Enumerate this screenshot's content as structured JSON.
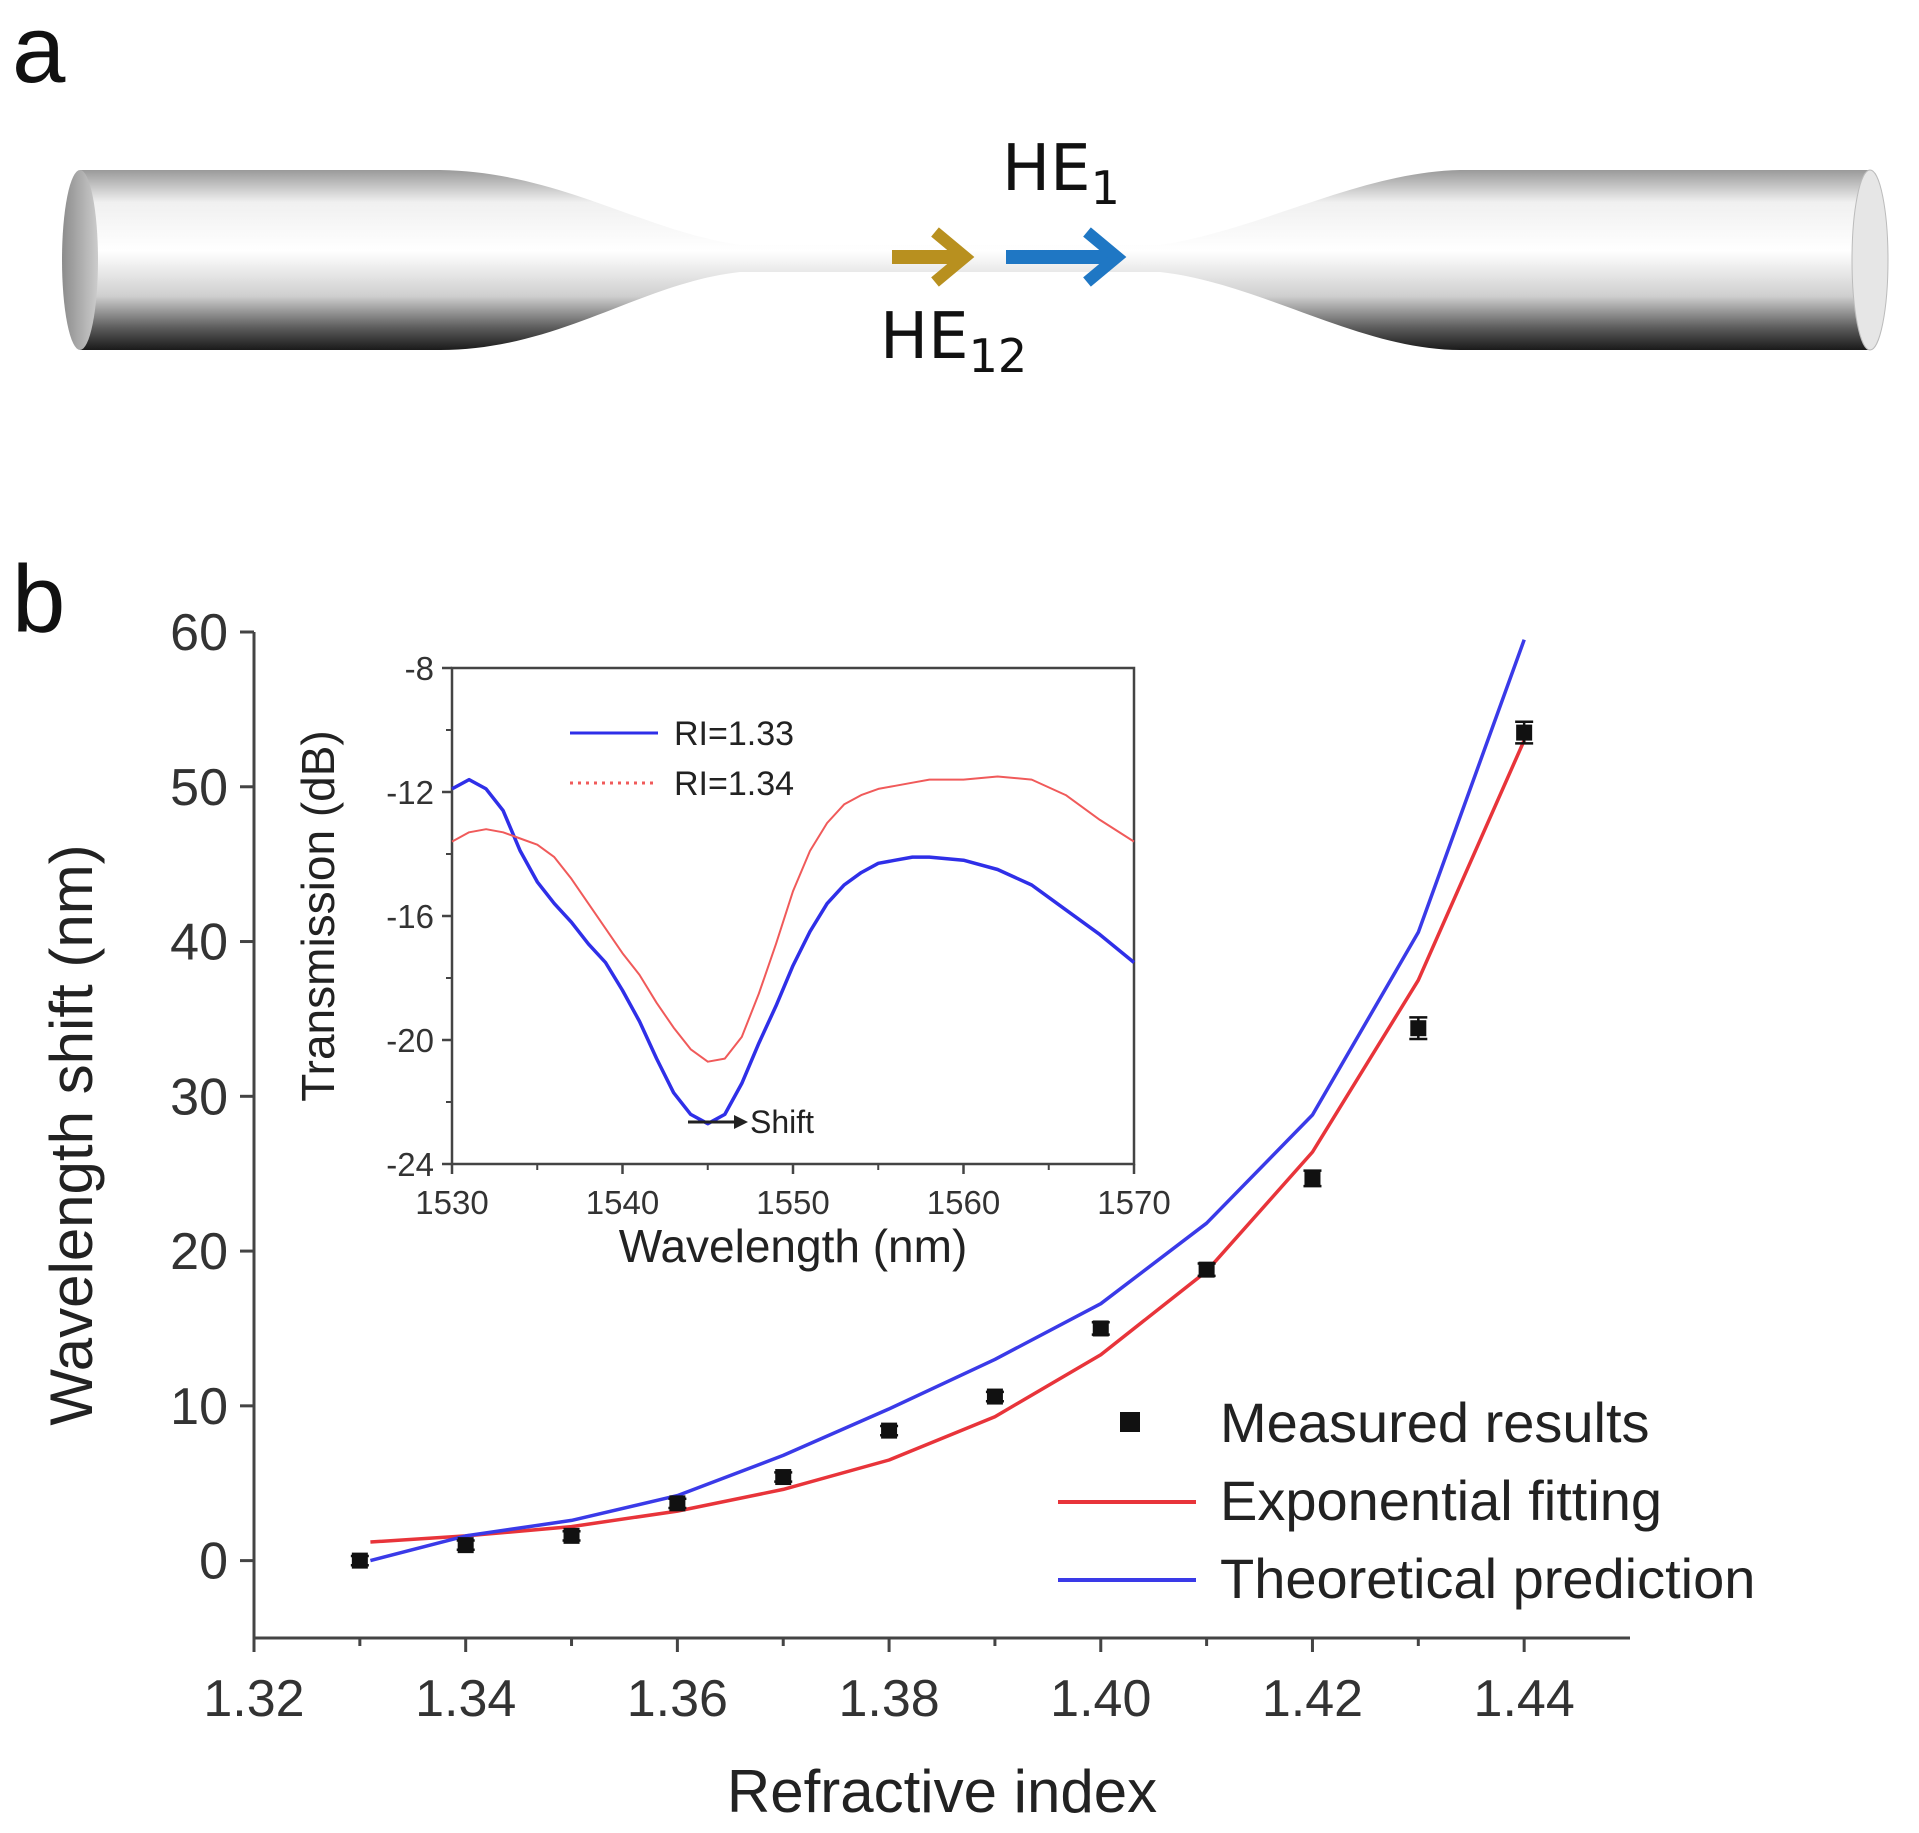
{
  "panel_a": {
    "letter": "a",
    "mode_labels": [
      {
        "base": "HE",
        "sub": "1"
      },
      {
        "base": "HE",
        "sub": "12"
      }
    ],
    "colors": {
      "he1_arrow": "#1f77c4",
      "he12_arrow": "#b8901f"
    }
  },
  "chart_data": [
    {
      "id": "main",
      "panel_letter": "b",
      "type": "scatter",
      "xlabel": "Refractive index",
      "ylabel": "Wavelength shift (nm)",
      "xlim": [
        1.32,
        1.45
      ],
      "ylim": [
        -5,
        60
      ],
      "xticks": [
        "1.32",
        "1.34",
        "1.36",
        "1.38",
        "1.40",
        "1.42",
        "1.44"
      ],
      "yticks": [
        "0",
        "10",
        "20",
        "30",
        "40",
        "50",
        "60"
      ],
      "legend_position": "bottom-right",
      "series": [
        {
          "name": "Measured results",
          "kind": "points_with_error",
          "color": "#111111",
          "x": [
            1.33,
            1.34,
            1.35,
            1.36,
            1.37,
            1.38,
            1.39,
            1.4,
            1.41,
            1.42,
            1.43,
            1.44
          ],
          "y": [
            0.0,
            1.0,
            1.6,
            3.7,
            5.4,
            8.4,
            10.6,
            15.0,
            18.8,
            24.7,
            34.4,
            53.5
          ],
          "err": [
            0.3,
            0.3,
            0.3,
            0.3,
            0.3,
            0.3,
            0.3,
            0.4,
            0.4,
            0.5,
            0.7,
            0.7
          ]
        },
        {
          "name": "Exponential fitting",
          "kind": "line",
          "color": "#e8343a",
          "x": [
            1.331,
            1.34,
            1.35,
            1.36,
            1.37,
            1.38,
            1.39,
            1.4,
            1.41,
            1.42,
            1.43,
            1.44
          ],
          "y": [
            1.2,
            1.6,
            2.2,
            3.2,
            4.6,
            6.5,
            9.3,
            13.3,
            18.7,
            26.4,
            37.5,
            53.0
          ]
        },
        {
          "name": "Theoretical prediction",
          "kind": "line",
          "color": "#3a3ae8",
          "x": [
            1.331,
            1.34,
            1.35,
            1.36,
            1.37,
            1.38,
            1.39,
            1.4,
            1.41,
            1.42,
            1.43,
            1.44
          ],
          "y": [
            0.0,
            1.6,
            2.6,
            4.2,
            6.8,
            9.8,
            13.0,
            16.6,
            21.8,
            28.8,
            40.6,
            59.5
          ]
        }
      ]
    },
    {
      "id": "inset",
      "type": "line",
      "xlabel": "Wavelength (nm)",
      "ylabel": "Transmission (dB)",
      "xlim": [
        1530,
        1570
      ],
      "ylim": [
        -24,
        -8
      ],
      "xticks": [
        "1530",
        "1540",
        "1550",
        "1560",
        "1570"
      ],
      "yticks": [
        "-8",
        "-12",
        "-16",
        "-20",
        "-24"
      ],
      "legend_position": "top-left",
      "annotation": "Shift",
      "series": [
        {
          "name": "RI=1.33",
          "color": "#2f2fe8",
          "style": "solid",
          "x": [
            1530,
            1531,
            1532,
            1533,
            1534,
            1535,
            1536,
            1537,
            1538,
            1539,
            1540,
            1541,
            1542,
            1543,
            1544,
            1545,
            1546,
            1547,
            1548,
            1549,
            1550,
            1551,
            1552,
            1553,
            1554,
            1555,
            1556,
            1557,
            1558,
            1560,
            1562,
            1564,
            1566,
            1568,
            1570
          ],
          "y": [
            -11.9,
            -11.6,
            -11.9,
            -12.6,
            -13.9,
            -14.9,
            -15.6,
            -16.2,
            -16.9,
            -17.5,
            -18.4,
            -19.4,
            -20.6,
            -21.7,
            -22.4,
            -22.7,
            -22.4,
            -21.4,
            -20.1,
            -18.9,
            -17.6,
            -16.5,
            -15.6,
            -15.0,
            -14.6,
            -14.3,
            -14.2,
            -14.1,
            -14.1,
            -14.2,
            -14.5,
            -15.0,
            -15.8,
            -16.6,
            -17.5
          ]
        },
        {
          "name": "RI=1.34",
          "color": "#f05a5a",
          "style": "dotted",
          "x": [
            1530,
            1531,
            1532,
            1533,
            1534,
            1535,
            1536,
            1537,
            1538,
            1539,
            1540,
            1541,
            1542,
            1543,
            1544,
            1545,
            1546,
            1547,
            1548,
            1549,
            1550,
            1551,
            1552,
            1553,
            1554,
            1555,
            1556,
            1557,
            1558,
            1560,
            1562,
            1564,
            1566,
            1568,
            1570
          ],
          "y": [
            -13.6,
            -13.3,
            -13.2,
            -13.3,
            -13.5,
            -13.7,
            -14.1,
            -14.8,
            -15.6,
            -16.4,
            -17.2,
            -17.9,
            -18.8,
            -19.6,
            -20.3,
            -20.7,
            -20.6,
            -19.9,
            -18.5,
            -16.9,
            -15.2,
            -13.9,
            -13.0,
            -12.4,
            -12.1,
            -11.9,
            -11.8,
            -11.7,
            -11.6,
            -11.6,
            -11.5,
            -11.6,
            -12.1,
            -12.9,
            -13.6
          ]
        }
      ]
    }
  ]
}
